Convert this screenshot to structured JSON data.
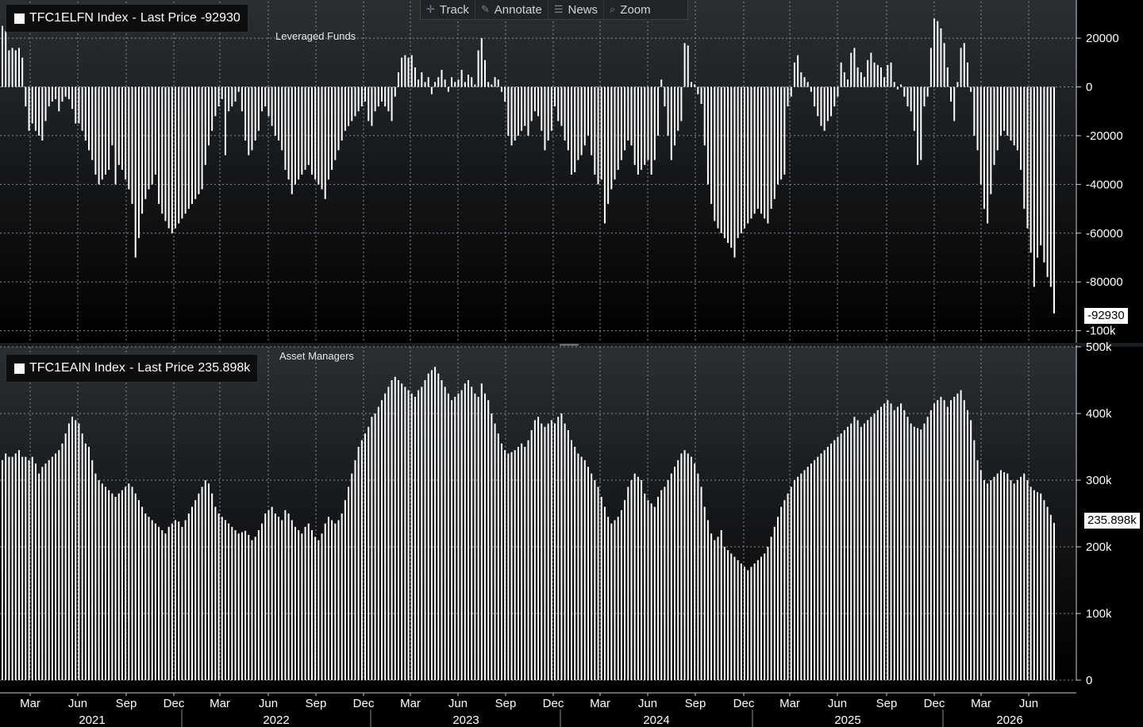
{
  "toolbar": {
    "track": "Track",
    "track_icon": "crosshair-icon",
    "annotate": "Annotate",
    "annotate_icon": "pencil-icon",
    "news": "News",
    "news_icon": "news-icon",
    "zoom": "Zoom",
    "zoom_icon": "magnifier-icon"
  },
  "colors": {
    "background_top": "#2a2f34",
    "background_bottom": "#000000",
    "bars": "#ffffff",
    "grid": "#8a8f94"
  },
  "chart_data": [
    {
      "type": "bar",
      "title": "Leveraged Funds",
      "legend": {
        "ticker": "TFC1ELFN Index",
        "field": "Last Price",
        "value": "-92930"
      },
      "last_value_label": "-92930",
      "ylim": [
        -105000,
        35000
      ],
      "y_ticks": [
        20000,
        0,
        -20000,
        -40000,
        -60000,
        -80000,
        -100000
      ],
      "y_tick_labels": [
        "20000",
        "0",
        "-20000",
        "-40000",
        "-60000",
        "-80000",
        "-100k"
      ],
      "grid": true,
      "values": [
        25000,
        23000,
        15000,
        16000,
        15000,
        16000,
        12000,
        -8000,
        -18000,
        -15000,
        -18000,
        -20000,
        -22000,
        -14000,
        -8000,
        -6000,
        -5000,
        -10000,
        -6000,
        -4000,
        -5000,
        -9000,
        -15000,
        -15000,
        -18000,
        -22000,
        -26000,
        -30000,
        -36000,
        -40000,
        -38000,
        -36000,
        -34000,
        -24000,
        -40000,
        -32000,
        -34000,
        -38000,
        -42000,
        -48000,
        -70000,
        -62000,
        -52000,
        -46000,
        -42000,
        -40000,
        -36000,
        -48000,
        -52000,
        -55000,
        -58000,
        -60000,
        -58000,
        -56000,
        -54000,
        -52000,
        -50000,
        -48000,
        -46000,
        -44000,
        -42000,
        -32000,
        -24000,
        -18000,
        -12000,
        -8000,
        -5000,
        -28000,
        -10000,
        -8000,
        -6000,
        -2000,
        -10000,
        -22000,
        -28000,
        -26000,
        -22000,
        -18000,
        -10000,
        -8000,
        -12000,
        -16000,
        -20000,
        -22000,
        -26000,
        -34000,
        -38000,
        -44000,
        -40000,
        -38000,
        -36000,
        -34000,
        -32000,
        -36000,
        -38000,
        -40000,
        -42000,
        -46000,
        -38000,
        -34000,
        -30000,
        -26000,
        -22000,
        -18000,
        -16000,
        -14000,
        -12000,
        -10000,
        -8000,
        -6000,
        -14000,
        -16000,
        -10000,
        -8000,
        -6000,
        -8000,
        -10000,
        -14000,
        -4000,
        6000,
        12000,
        13000,
        12000,
        13000,
        8000,
        3000,
        6000,
        2000,
        4000,
        -3000,
        2000,
        4000,
        7000,
        3000,
        -2000,
        4000,
        2000,
        3000,
        7000,
        2000,
        5000,
        4000,
        1000,
        15000,
        20000,
        11000,
        2000,
        1000,
        4000,
        3000,
        -2000,
        -6000,
        -20000,
        -24000,
        -22000,
        -20000,
        -18000,
        -16000,
        -20000,
        -14000,
        -10000,
        -12000,
        -18000,
        -26000,
        -22000,
        -18000,
        -8000,
        -14000,
        -16000,
        -22000,
        -26000,
        -36000,
        -35000,
        -30000,
        -28000,
        -24000,
        -20000,
        -28000,
        -36000,
        -40000,
        -38000,
        -56000,
        -48000,
        -42000,
        -38000,
        -34000,
        -30000,
        -26000,
        -22000,
        -24000,
        -32000,
        -36000,
        -34000,
        -32000,
        -30000,
        -36000,
        -30000,
        -20000,
        3000,
        -8000,
        -20000,
        -30000,
        -24000,
        -18000,
        -14000,
        18000,
        17000,
        2000,
        1000,
        -3000,
        -7000,
        -24000,
        -40000,
        -48000,
        -55000,
        -58000,
        -60000,
        -62000,
        -64000,
        -66000,
        -70000,
        -62000,
        -60000,
        -58000,
        -56000,
        -54000,
        -52000,
        -50000,
        -52000,
        -54000,
        -56000,
        -50000,
        -46000,
        -40000,
        -38000,
        -36000,
        -8000,
        -4000,
        10000,
        13000,
        6000,
        4000,
        2000,
        -2000,
        -8000,
        -12000,
        -16000,
        -18000,
        -14000,
        -12000,
        -8000,
        -4000,
        10000,
        6000,
        3000,
        14000,
        16000,
        8000,
        6000,
        4000,
        11000,
        14000,
        10000,
        9000,
        8000,
        4000,
        9000,
        10000,
        2000,
        -1000,
        1000,
        -4000,
        -8000,
        -10000,
        -18000,
        -32000,
        -30000,
        -8000,
        -4000,
        16000,
        28000,
        27000,
        24000,
        18000,
        8000,
        -6000,
        -14000,
        2000,
        16000,
        18000,
        10000,
        -2000,
        -20000,
        -26000,
        -40000,
        -50000,
        -56000,
        -44000,
        -32000,
        -26000,
        -20000,
        -18000,
        -20000,
        -22000,
        -24000,
        -26000,
        -34000,
        -50000,
        -58000,
        -68000,
        -82000,
        -70000,
        -65000,
        -72000,
        -78000,
        -82000,
        -92930
      ]
    },
    {
      "type": "bar",
      "title": "Asset Managers",
      "legend": {
        "ticker": "TFC1EAIN Index",
        "field": "Last Price",
        "value": "235.898k"
      },
      "last_value_label": "235.898k",
      "ylim": [
        0,
        500000
      ],
      "y_ticks": [
        0,
        100000,
        200000,
        300000,
        400000,
        500000
      ],
      "y_tick_labels": [
        "0",
        "100k",
        "200k",
        "300k",
        "400k",
        "500k"
      ],
      "grid": true,
      "values": [
        330000,
        340000,
        335000,
        335000,
        340000,
        345000,
        335000,
        335000,
        330000,
        335000,
        325000,
        310000,
        320000,
        325000,
        330000,
        335000,
        340000,
        345000,
        355000,
        370000,
        385000,
        395000,
        390000,
        385000,
        370000,
        355000,
        350000,
        330000,
        310000,
        300000,
        295000,
        290000,
        285000,
        280000,
        275000,
        280000,
        285000,
        290000,
        295000,
        290000,
        280000,
        270000,
        260000,
        250000,
        245000,
        240000,
        235000,
        230000,
        225000,
        220000,
        230000,
        235000,
        240000,
        238000,
        230000,
        240000,
        250000,
        260000,
        270000,
        280000,
        290000,
        300000,
        295000,
        280000,
        260000,
        250000,
        245000,
        240000,
        235000,
        230000,
        225000,
        220000,
        222000,
        224000,
        218000,
        210000,
        215000,
        225000,
        235000,
        250000,
        255000,
        260000,
        250000,
        245000,
        240000,
        255000,
        250000,
        240000,
        230000,
        225000,
        220000,
        230000,
        235000,
        225000,
        215000,
        210000,
        220000,
        235000,
        245000,
        240000,
        235000,
        240000,
        250000,
        270000,
        290000,
        310000,
        330000,
        350000,
        360000,
        370000,
        380000,
        395000,
        400000,
        410000,
        420000,
        430000,
        440000,
        450000,
        455000,
        450000,
        445000,
        440000,
        435000,
        430000,
        425000,
        435000,
        440000,
        450000,
        460000,
        465000,
        470000,
        460000,
        450000,
        440000,
        430000,
        420000,
        425000,
        430000,
        435000,
        445000,
        450000,
        440000,
        430000,
        425000,
        445000,
        430000,
        420000,
        400000,
        385000,
        370000,
        355000,
        345000,
        340000,
        342000,
        345000,
        350000,
        355000,
        350000,
        360000,
        375000,
        390000,
        395000,
        385000,
        380000,
        385000,
        390000,
        385000,
        395000,
        400000,
        385000,
        375000,
        360000,
        350000,
        340000,
        335000,
        330000,
        320000,
        310000,
        300000,
        290000,
        275000,
        260000,
        245000,
        235000,
        240000,
        245000,
        255000,
        270000,
        290000,
        300000,
        310000,
        305000,
        300000,
        280000,
        270000,
        265000,
        260000,
        275000,
        285000,
        290000,
        300000,
        310000,
        320000,
        330000,
        340000,
        345000,
        340000,
        335000,
        325000,
        310000,
        290000,
        260000,
        240000,
        220000,
        210000,
        215000,
        225000,
        200000,
        195000,
        190000,
        185000,
        180000,
        175000,
        170000,
        165000,
        170000,
        175000,
        180000,
        185000,
        190000,
        200000,
        215000,
        230000,
        245000,
        260000,
        270000,
        280000,
        290000,
        300000,
        305000,
        310000,
        315000,
        320000,
        325000,
        330000,
        335000,
        340000,
        345000,
        350000,
        355000,
        360000,
        365000,
        370000,
        375000,
        380000,
        385000,
        395000,
        390000,
        380000,
        385000,
        390000,
        395000,
        400000,
        405000,
        410000,
        415000,
        420000,
        415000,
        405000,
        410000,
        415000,
        405000,
        395000,
        385000,
        380000,
        378000,
        376000,
        385000,
        395000,
        405000,
        415000,
        420000,
        425000,
        420000,
        410000,
        420000,
        425000,
        430000,
        435000,
        420000,
        405000,
        390000,
        360000,
        330000,
        315000,
        300000,
        295000,
        300000,
        305000,
        310000,
        315000,
        312000,
        310000,
        300000,
        295000,
        300000,
        305000,
        310000,
        300000,
        290000,
        285000,
        282000,
        280000,
        270000,
        260000,
        248000,
        235898
      ]
    }
  ],
  "x_axis": {
    "month_labels": [
      "Mar",
      "Jun",
      "Sep",
      "Dec",
      "Mar",
      "Jun",
      "Sep",
      "Dec",
      "Mar",
      "Jun",
      "Sep",
      "Dec",
      "Mar",
      "Jun",
      "Sep",
      "Dec",
      "Mar",
      "Jun",
      "Sep",
      "Dec",
      "Mar",
      "Jun"
    ],
    "year_labels": [
      "2021",
      "2022",
      "2023",
      "2024",
      "2025",
      "2026"
    ]
  }
}
